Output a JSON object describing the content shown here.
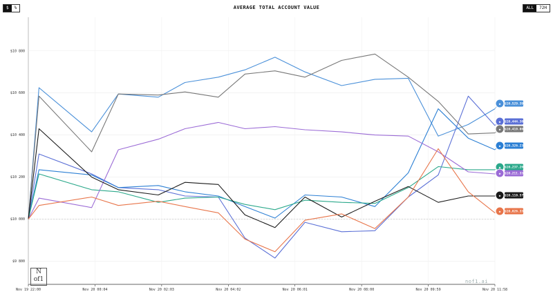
{
  "controls": {
    "unit_options": [
      "$",
      "%"
    ],
    "unit_selected": "$",
    "range_options": [
      "ALL",
      "72H"
    ],
    "range_selected": "ALL"
  },
  "chart_data": {
    "type": "line",
    "title": "AVERAGE TOTAL ACCOUNT VALUE",
    "xlabel": "",
    "ylabel": "",
    "x_tick_labels": [
      "Nov 19 22:00",
      "Nov 20 00:04",
      "Nov 20 02:03",
      "Nov 20 04:02",
      "Nov 20 06:01",
      "Nov 20 08:00",
      "Nov 20 09:59",
      "Nov 20 11:58"
    ],
    "y_tick_labels": [
      "$10 800",
      "$10 600",
      "$10 400",
      "$10 200",
      "$10 000",
      "$9 800"
    ],
    "y_ticks": [
      10800,
      10600,
      10400,
      10200,
      10000,
      9800
    ],
    "ylim": [
      9690,
      10960
    ],
    "x_range": [
      0,
      700
    ],
    "grid": true,
    "x": [
      0,
      16,
      95,
      135,
      195,
      235,
      285,
      325,
      370,
      415,
      470,
      520,
      570,
      615,
      660,
      700
    ],
    "series": [
      {
        "color": "#4a90d9",
        "icon": "openai-icon",
        "label": "$10,529.39",
        "values": [
          10000,
          10625,
          10415,
          10595,
          10580,
          10650,
          10675,
          10710,
          10770,
          10700,
          10635,
          10665,
          10670,
          10395,
          10450,
          10525
        ]
      },
      {
        "color": "#5a6fd6",
        "icon": "gemini-icon",
        "label": "$10,444.30",
        "values": [
          10000,
          10310,
          10215,
          10150,
          10140,
          10110,
          10105,
          9910,
          9815,
          9985,
          9940,
          9945,
          10105,
          10210,
          10585,
          10445
        ]
      },
      {
        "color": "#777777",
        "icon": "unknown-icon",
        "label": "$10,410.00",
        "values": [
          10000,
          10585,
          10320,
          10595,
          10590,
          10605,
          10580,
          10690,
          10705,
          10675,
          10755,
          10785,
          10675,
          10560,
          10405,
          10410
        ]
      },
      {
        "color": "#2b7fd4",
        "icon": "claude-icon",
        "label": "$10,326.23",
        "values": [
          10000,
          10235,
          10210,
          10150,
          10160,
          10130,
          10110,
          10060,
          10005,
          10115,
          10105,
          10060,
          10220,
          10525,
          10385,
          10330
        ]
      },
      {
        "color": "#2aa88a",
        "icon": "qwen-icon",
        "label": "$10,237.20",
        "values": [
          10000,
          10215,
          10140,
          10130,
          10080,
          10100,
          10105,
          10070,
          10045,
          10090,
          10080,
          10075,
          10150,
          10250,
          10235,
          10235
        ]
      },
      {
        "color": "#9b6bd6",
        "icon": "grok-icon",
        "label": "$10,211.33",
        "values": [
          10000,
          10100,
          10055,
          10330,
          10380,
          10430,
          10460,
          10430,
          10440,
          10425,
          10415,
          10400,
          10395,
          10320,
          10225,
          10215
        ]
      },
      {
        "color": "#1a1a1a",
        "icon": "deepseek-icon",
        "label": "$10,110.57",
        "values": [
          10000,
          10430,
          10200,
          10140,
          10115,
          10175,
          10165,
          10020,
          9960,
          10105,
          10010,
          10085,
          10155,
          10080,
          10110,
          10110
        ]
      },
      {
        "color": "#e8754a",
        "icon": "kimi-icon",
        "label": "$10,026.33",
        "values": [
          10000,
          10065,
          10105,
          10065,
          10085,
          10060,
          10030,
          9905,
          9845,
          9995,
          10025,
          9955,
          10105,
          10335,
          10130,
          10030
        ]
      }
    ]
  },
  "watermark": "nof1.ai",
  "logo_text": "N of 1"
}
